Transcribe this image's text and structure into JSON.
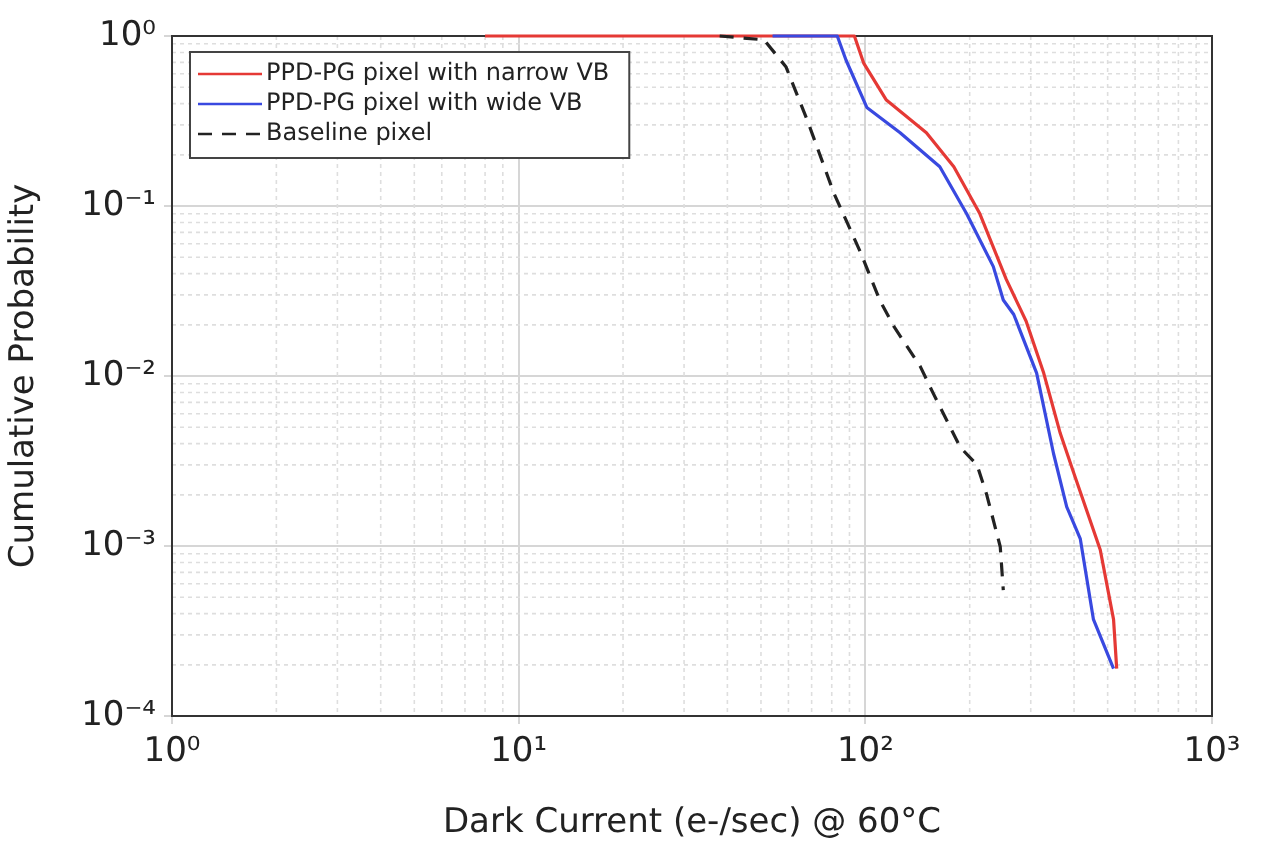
{
  "chart_data": {
    "type": "line",
    "xlabel": "Dark Current (e-/sec) @ 60°C",
    "ylabel": "Cumulative Probability",
    "log": "xy",
    "grid": true,
    "legend": "top left",
    "marker": "none",
    "xlim": [
      1,
      1000
    ],
    "ylim": [
      0.0001,
      1
    ],
    "xticks": [
      {
        "value": 1,
        "label": "10⁰"
      },
      {
        "value": 10,
        "label": "10¹"
      },
      {
        "value": 100,
        "label": "10²"
      },
      {
        "value": 1000,
        "label": "10³"
      }
    ],
    "yticks": [
      {
        "value": 0.0001,
        "label": "10⁻⁴"
      },
      {
        "value": 0.001,
        "label": "10⁻³"
      },
      {
        "value": 0.01,
        "label": "10⁻²"
      },
      {
        "value": 0.1,
        "label": "10⁻¹"
      },
      {
        "value": 1,
        "label": "10⁰"
      }
    ],
    "series": [
      {
        "name": "PPD-PG pixel with narrow VB",
        "color": "#e53935",
        "line_style": "solid",
        "x": [
          8,
          93,
          99,
          115,
          150,
          180,
          214,
          255,
          291,
          327,
          365,
          399,
          476,
          520,
          531
        ],
        "values": [
          1,
          1,
          0.69,
          0.42,
          0.27,
          0.17,
          0.09,
          0.037,
          0.021,
          0.0104,
          0.0046,
          0.0027,
          0.00095,
          0.00037,
          0.00019
        ]
      },
      {
        "name": "PPD-PG pixel with wide VB",
        "color": "#3949e0",
        "line_style": "solid",
        "x": [
          54,
          83,
          88,
          101,
          126,
          164,
          196,
          234,
          250,
          268,
          312,
          349,
          381,
          417,
          455,
          520
        ],
        "values": [
          1,
          1,
          0.72,
          0.38,
          0.27,
          0.17,
          0.09,
          0.044,
          0.028,
          0.023,
          0.0104,
          0.0035,
          0.0017,
          0.0011,
          0.00037,
          0.00019
        ]
      },
      {
        "name": "Baseline pixel",
        "color": "#222222",
        "line_style": "dashed",
        "x": [
          38,
          51,
          59,
          68,
          81,
          97,
          110,
          121,
          144,
          157,
          188,
          210,
          224,
          245,
          250
        ],
        "values": [
          1,
          0.95,
          0.66,
          0.32,
          0.12,
          0.053,
          0.028,
          0.0195,
          0.0114,
          0.0079,
          0.0038,
          0.003,
          0.002,
          0.00099,
          0.00055
        ]
      }
    ]
  }
}
